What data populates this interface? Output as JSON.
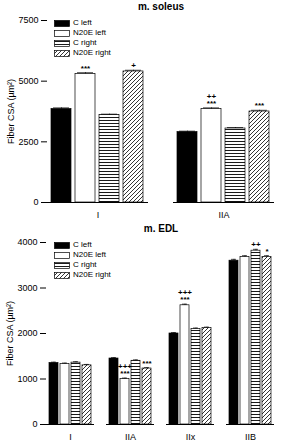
{
  "chart_data": [
    {
      "type": "bar",
      "title": "m. soleus",
      "y_label": "Fiber CSA (µm²)",
      "categories": [
        "I",
        "IIA"
      ],
      "series": [
        {
          "name": "C left",
          "color": "#000000",
          "values": [
            3850,
            2900
          ],
          "errors": [
            50,
            40
          ]
        },
        {
          "name": "N20E left",
          "color": "#ffffff",
          "values": [
            5300,
            3850
          ],
          "errors": [
            50,
            50
          ]
        },
        {
          "name": "C right",
          "color": "#000000",
          "values": [
            3600,
            3050
          ],
          "errors": [
            40,
            40
          ]
        },
        {
          "name": "N20E right",
          "color": "#000000",
          "values": [
            5400,
            3750
          ],
          "errors": [
            50,
            50
          ]
        }
      ],
      "ylim": [
        0,
        7500
      ],
      "yticks": [
        0,
        2500,
        5000,
        7500
      ],
      "legend": "top-left",
      "annotations": [
        {
          "category": "I",
          "series": "N20E left",
          "text": "***"
        },
        {
          "category": "I",
          "series": "N20E right",
          "text": "+"
        },
        {
          "category": "IIA",
          "series": "N20E left",
          "text": "***"
        },
        {
          "category": "IIA",
          "series": "N20E left",
          "text": "++"
        },
        {
          "category": "IIA",
          "series": "N20E right",
          "text": "***"
        }
      ]
    },
    {
      "type": "bar",
      "title": "m. EDL",
      "y_label": "Fiber CSA (µm²)",
      "categories": [
        "I",
        "IIA",
        "IIx",
        "IIB"
      ],
      "series": [
        {
          "name": "C left",
          "color": "#000000",
          "values": [
            1350,
            1450,
            2000,
            3600
          ],
          "errors": [
            20,
            20,
            20,
            30
          ]
        },
        {
          "name": "N20E left",
          "color": "#ffffff",
          "values": [
            1330,
            1000,
            2620,
            3680
          ],
          "errors": [
            20,
            20,
            25,
            30
          ]
        },
        {
          "name": "C right",
          "color": "#000000",
          "values": [
            1360,
            1400,
            2100,
            3820
          ],
          "errors": [
            20,
            20,
            20,
            30
          ]
        },
        {
          "name": "N20E right",
          "color": "#000000",
          "values": [
            1300,
            1230,
            2120,
            3680
          ],
          "errors": [
            20,
            20,
            20,
            30
          ]
        }
      ],
      "ylim": [
        0,
        4000
      ],
      "yticks": [
        0,
        1000,
        2000,
        3000,
        4000
      ],
      "legend": "top-left",
      "annotations": [
        {
          "category": "IIA",
          "series": "N20E left",
          "text": "***"
        },
        {
          "category": "IIA",
          "series": "N20E left",
          "text": "+++"
        },
        {
          "category": "IIA",
          "series": "N20E right",
          "text": "***"
        },
        {
          "category": "IIx",
          "series": "N20E left",
          "text": "***"
        },
        {
          "category": "IIx",
          "series": "N20E left",
          "text": "+++"
        },
        {
          "category": "IIB",
          "series": "C right",
          "text": "++"
        },
        {
          "category": "IIB",
          "series": "N20E right",
          "text": "*"
        }
      ]
    }
  ]
}
